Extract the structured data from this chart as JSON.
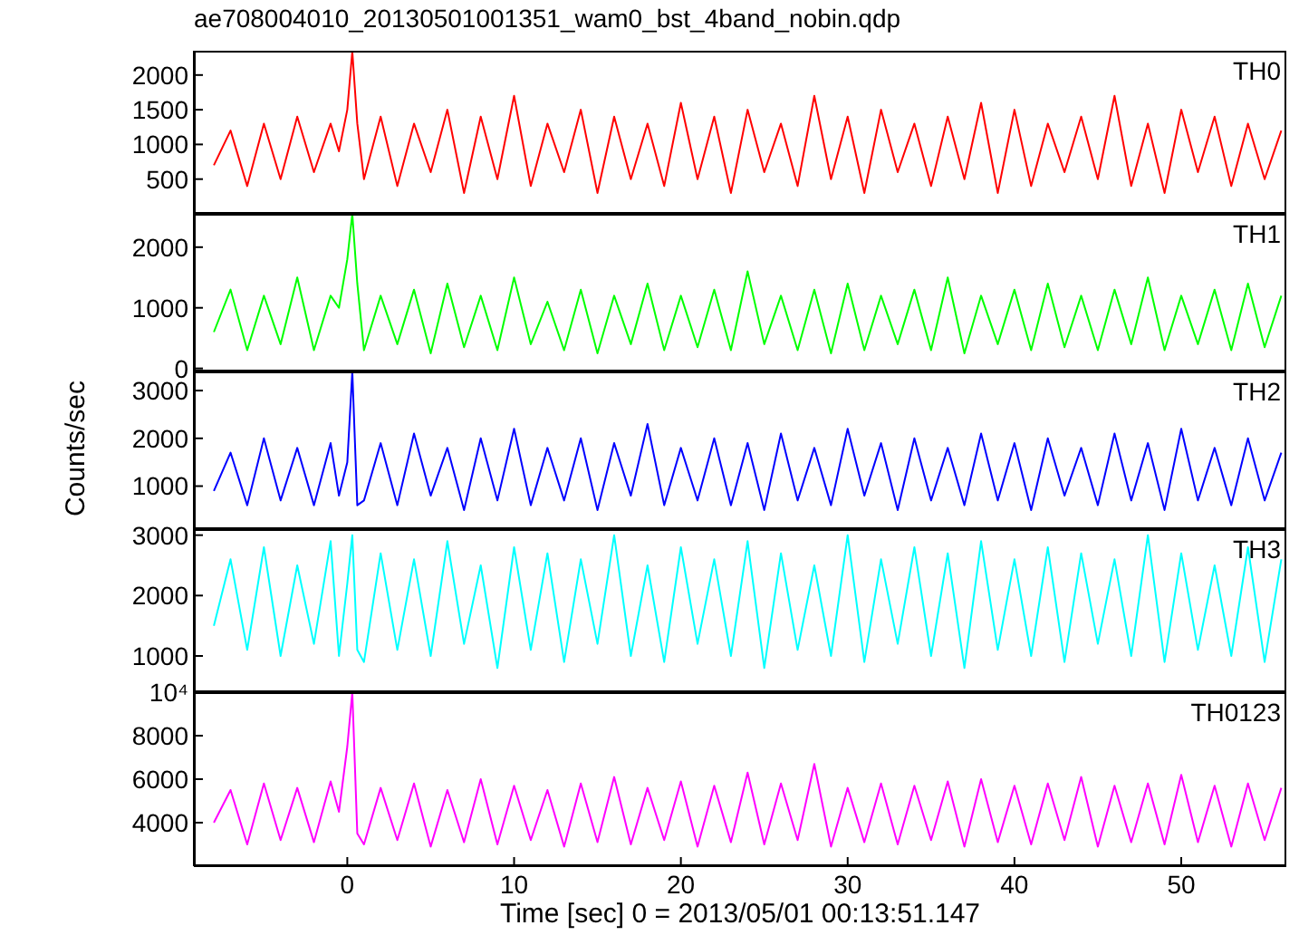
{
  "chart_data": [
    {
      "type": "line",
      "title": "ae708004010_20130501001351_wam0_bst_4band_nobin.qdp",
      "x": [
        -8,
        -7,
        -6,
        -5,
        -4,
        -3,
        -2,
        -1,
        -0.5,
        0,
        0.3,
        0.6,
        1,
        2,
        3,
        4,
        5,
        6,
        7,
        8,
        9,
        10,
        11,
        12,
        13,
        14,
        15,
        16,
        17,
        18,
        19,
        20,
        21,
        22,
        23,
        24,
        25,
        26,
        27,
        28,
        29,
        30,
        31,
        32,
        33,
        34,
        35,
        36,
        37,
        38,
        39,
        40,
        41,
        42,
        43,
        44,
        45,
        46,
        47,
        48,
        49,
        50,
        51,
        52,
        53,
        54,
        55,
        56
      ],
      "xlim": [
        -9.2,
        56.3
      ],
      "xticks": [
        0,
        10,
        20,
        30,
        40,
        50
      ],
      "ylim": [
        0,
        2350
      ],
      "yticks": [
        500,
        1000,
        1500,
        2000
      ],
      "tick_labels": "y",
      "series": [
        {
          "name": "TH0",
          "color": "#ff0000",
          "values": [
            700,
            1200,
            400,
            1300,
            500,
            1400,
            600,
            1300,
            900,
            1500,
            2340,
            1300,
            500,
            1400,
            400,
            1300,
            600,
            1500,
            300,
            1400,
            500,
            1700,
            400,
            1300,
            600,
            1500,
            300,
            1400,
            500,
            1300,
            400,
            1600,
            500,
            1400,
            300,
            1500,
            600,
            1300,
            400,
            1700,
            500,
            1400,
            300,
            1500,
            600,
            1300,
            400,
            1400,
            500,
            1600,
            300,
            1500,
            400,
            1300,
            600,
            1400,
            500,
            1700,
            400,
            1300,
            300,
            1500,
            600,
            1400,
            400,
            1300,
            500,
            1200
          ]
        }
      ]
    },
    {
      "type": "line",
      "x": [
        -8,
        -7,
        -6,
        -5,
        -4,
        -3,
        -2,
        -1,
        -0.5,
        0,
        0.3,
        0.6,
        1,
        2,
        3,
        4,
        5,
        6,
        7,
        8,
        9,
        10,
        11,
        12,
        13,
        14,
        15,
        16,
        17,
        18,
        19,
        20,
        21,
        22,
        23,
        24,
        25,
        26,
        27,
        28,
        29,
        30,
        31,
        32,
        33,
        34,
        35,
        36,
        37,
        38,
        39,
        40,
        41,
        42,
        43,
        44,
        45,
        46,
        47,
        48,
        49,
        50,
        51,
        52,
        53,
        54,
        55,
        56
      ],
      "xlim": [
        -9.2,
        56.3
      ],
      "xticks": [
        0,
        10,
        20,
        30,
        40,
        50
      ],
      "ylim": [
        -50,
        2550
      ],
      "yticks": [
        0,
        1000,
        2000
      ],
      "tick_labels": "y",
      "series": [
        {
          "name": "TH1",
          "color": "#00ff00",
          "values": [
            600,
            1300,
            300,
            1200,
            400,
            1500,
            300,
            1200,
            1000,
            1800,
            2550,
            1400,
            300,
            1200,
            400,
            1300,
            250,
            1400,
            350,
            1200,
            300,
            1500,
            400,
            1100,
            300,
            1300,
            250,
            1200,
            400,
            1400,
            300,
            1200,
            350,
            1300,
            300,
            1600,
            400,
            1200,
            300,
            1300,
            250,
            1400,
            300,
            1200,
            400,
            1300,
            300,
            1500,
            250,
            1200,
            400,
            1300,
            300,
            1400,
            350,
            1200,
            300,
            1300,
            400,
            1500,
            300,
            1200,
            400,
            1300,
            300,
            1400,
            350,
            1200
          ]
        }
      ]
    },
    {
      "type": "line",
      "ylabel": "Counts/sec",
      "x": [
        -8,
        -7,
        -6,
        -5,
        -4,
        -3,
        -2,
        -1,
        -0.5,
        0,
        0.3,
        0.6,
        1,
        2,
        3,
        4,
        5,
        6,
        7,
        8,
        9,
        10,
        11,
        12,
        13,
        14,
        15,
        16,
        17,
        18,
        19,
        20,
        21,
        22,
        23,
        24,
        25,
        26,
        27,
        28,
        29,
        30,
        31,
        32,
        33,
        34,
        35,
        36,
        37,
        38,
        39,
        40,
        41,
        42,
        43,
        44,
        45,
        46,
        47,
        48,
        49,
        50,
        51,
        52,
        53,
        54,
        55,
        56
      ],
      "xlim": [
        -9.2,
        56.3
      ],
      "xticks": [
        0,
        10,
        20,
        30,
        40,
        50
      ],
      "ylim": [
        100,
        3400
      ],
      "yticks": [
        1000,
        2000,
        3000
      ],
      "tick_labels": "y",
      "series": [
        {
          "name": "TH2",
          "color": "#0000ff",
          "values": [
            900,
            1700,
            600,
            2000,
            700,
            1800,
            600,
            1900,
            800,
            1500,
            3400,
            600,
            700,
            1900,
            600,
            2100,
            800,
            1800,
            500,
            2000,
            700,
            2200,
            600,
            1800,
            700,
            2000,
            500,
            1900,
            800,
            2300,
            600,
            1800,
            700,
            2000,
            600,
            1900,
            500,
            2100,
            700,
            1800,
            600,
            2200,
            800,
            1900,
            500,
            2000,
            700,
            1800,
            600,
            2100,
            700,
            1900,
            500,
            2000,
            800,
            1800,
            600,
            2100,
            700,
            1900,
            500,
            2200,
            700,
            1800,
            600,
            2000,
            700,
            1700
          ]
        }
      ]
    },
    {
      "type": "line",
      "x": [
        -8,
        -7,
        -6,
        -5,
        -4,
        -3,
        -2,
        -1,
        -0.5,
        0,
        0.3,
        0.6,
        1,
        2,
        3,
        4,
        5,
        6,
        7,
        8,
        9,
        10,
        11,
        12,
        13,
        14,
        15,
        16,
        17,
        18,
        19,
        20,
        21,
        22,
        23,
        24,
        25,
        26,
        27,
        28,
        29,
        30,
        31,
        32,
        33,
        34,
        35,
        36,
        37,
        38,
        39,
        40,
        41,
        42,
        43,
        44,
        45,
        46,
        47,
        48,
        49,
        50,
        51,
        52,
        53,
        54,
        55,
        56
      ],
      "xlim": [
        -9.2,
        56.3
      ],
      "xticks": [
        0,
        10,
        20,
        30,
        40,
        50
      ],
      "ylim": [
        400,
        3100
      ],
      "yticks": [
        1000,
        2000,
        3000
      ],
      "tick_labels": "y",
      "series": [
        {
          "name": "TH3",
          "color": "#00ffff",
          "values": [
            1500,
            2600,
            1100,
            2800,
            1000,
            2500,
            1200,
            2900,
            1000,
            2200,
            3000,
            1100,
            900,
            2700,
            1100,
            2600,
            1000,
            2900,
            1200,
            2500,
            800,
            2800,
            1100,
            2700,
            900,
            2600,
            1200,
            3000,
            1000,
            2500,
            900,
            2800,
            1200,
            2600,
            1000,
            2900,
            800,
            2700,
            1100,
            2500,
            1000,
            3000,
            900,
            2600,
            1200,
            2800,
            1000,
            2700,
            800,
            2900,
            1100,
            2600,
            1000,
            2800,
            900,
            2700,
            1200,
            2600,
            1000,
            3000,
            900,
            2700,
            1100,
            2500,
            1000,
            2800,
            900,
            2600
          ]
        }
      ]
    },
    {
      "type": "line",
      "xlabel": "Time [sec] 0 = 2013/05/01 00:13:51.147",
      "x": [
        -8,
        -7,
        -6,
        -5,
        -4,
        -3,
        -2,
        -1,
        -0.5,
        0,
        0.3,
        0.6,
        1,
        2,
        3,
        4,
        5,
        6,
        7,
        8,
        9,
        10,
        11,
        12,
        13,
        14,
        15,
        16,
        17,
        18,
        19,
        20,
        21,
        22,
        23,
        24,
        25,
        26,
        27,
        28,
        29,
        30,
        31,
        32,
        33,
        34,
        35,
        36,
        37,
        38,
        39,
        40,
        41,
        42,
        43,
        44,
        45,
        46,
        47,
        48,
        49,
        50,
        51,
        52,
        53,
        54,
        55,
        56
      ],
      "xlim": [
        -9.2,
        56.3
      ],
      "xticks": [
        0,
        10,
        20,
        30,
        40,
        50
      ],
      "ylim": [
        2000,
        10000
      ],
      "yticks": [
        4000,
        6000,
        8000,
        {
          "value": 10000,
          "label": "10⁴"
        }
      ],
      "series": [
        {
          "name": "TH0123",
          "color": "#ff00ff",
          "values": [
            4000,
            5500,
            3000,
            5800,
            3200,
            5600,
            3100,
            5900,
            4500,
            7500,
            10000,
            3500,
            3000,
            5600,
            3200,
            5800,
            2900,
            5500,
            3100,
            6000,
            3000,
            5700,
            3200,
            5500,
            2900,
            5800,
            3100,
            6100,
            3000,
            5600,
            3200,
            5900,
            2900,
            5700,
            3100,
            6300,
            3000,
            5800,
            3200,
            6700,
            2900,
            5600,
            3100,
            5800,
            3000,
            5700,
            3200,
            5900,
            2900,
            6000,
            3100,
            5700,
            3000,
            5800,
            3200,
            6100,
            2900,
            5700,
            3100,
            5800,
            3000,
            6200,
            3100,
            5700,
            2900,
            5800,
            3200,
            5600
          ]
        }
      ]
    }
  ]
}
